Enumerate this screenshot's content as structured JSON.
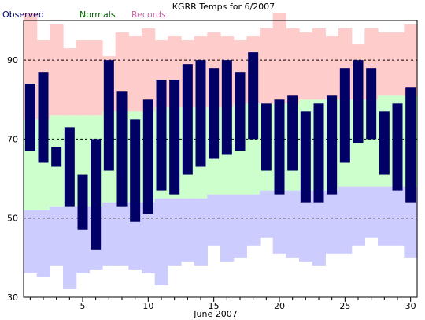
{
  "chart_data": {
    "type": "bar",
    "title": "KGRR Temps for 6/2007",
    "xlabel": "June 2007",
    "ylabel": "",
    "xlim": [
      0.5,
      30.5
    ],
    "ylim": [
      30,
      100
    ],
    "yticks": [
      30,
      50,
      70,
      90
    ],
    "xticks": [
      5,
      10,
      15,
      20,
      25,
      30
    ],
    "dashed_gridlines": [
      50,
      70,
      90
    ],
    "legend": [
      {
        "name": "Observed",
        "color": "#000066"
      },
      {
        "name": "Normals",
        "color": "#006600"
      },
      {
        "name": "Records",
        "color": "#cc66aa"
      }
    ],
    "colors": {
      "observed": "#000066",
      "normal_band": "#ccffcc",
      "record_high_band": "#ffcccc",
      "record_low_band": "#ccccff"
    },
    "days": [
      1,
      2,
      3,
      4,
      5,
      6,
      7,
      8,
      9,
      10,
      11,
      12,
      13,
      14,
      15,
      16,
      17,
      18,
      19,
      20,
      21,
      22,
      23,
      24,
      25,
      26,
      27,
      28,
      29,
      30
    ],
    "series": [
      {
        "name": "Observed",
        "key": "obs_high",
        "values": [
          84,
          87,
          68,
          73,
          61,
          70,
          90,
          82,
          75,
          80,
          85,
          85,
          89,
          90,
          88,
          90,
          87,
          92,
          79,
          80,
          81,
          77,
          79,
          81,
          88,
          90,
          88,
          77,
          79,
          83
        ]
      },
      {
        "key": "obs_low",
        "values": [
          67,
          64,
          63,
          53,
          47,
          42,
          62,
          53,
          49,
          51,
          57,
          56,
          61,
          63,
          65,
          66,
          67,
          70,
          62,
          56,
          62,
          54,
          54,
          56,
          64,
          69,
          70,
          61,
          57,
          54
        ]
      },
      {
        "key": "normal_high",
        "values": [
          75,
          75,
          76,
          76,
          76,
          76,
          77,
          77,
          77,
          77,
          78,
          78,
          78,
          78,
          78,
          78,
          79,
          79,
          79,
          79,
          79,
          80,
          80,
          80,
          80,
          80,
          80,
          81,
          81,
          81
        ]
      },
      {
        "key": "normal_low",
        "values": [
          52,
          52,
          53,
          53,
          53,
          53,
          54,
          54,
          54,
          54,
          55,
          55,
          55,
          55,
          56,
          56,
          56,
          56,
          57,
          57,
          57,
          57,
          57,
          57,
          58,
          58,
          58,
          58,
          58,
          58
        ]
      },
      {
        "key": "record_high",
        "values": [
          102,
          95,
          99,
          93,
          95,
          95,
          91,
          97,
          96,
          98,
          95,
          96,
          95,
          96,
          97,
          96,
          95,
          96,
          98,
          102,
          98,
          97,
          98,
          96,
          98,
          94,
          98,
          97,
          97,
          99
        ]
      },
      {
        "key": "record_low",
        "values": [
          36,
          35,
          38,
          32,
          36,
          37,
          38,
          38,
          37,
          36,
          33,
          38,
          39,
          38,
          43,
          39,
          40,
          43,
          45,
          41,
          40,
          39,
          38,
          41,
          41,
          43,
          45,
          43,
          43,
          40
        ]
      }
    ]
  }
}
